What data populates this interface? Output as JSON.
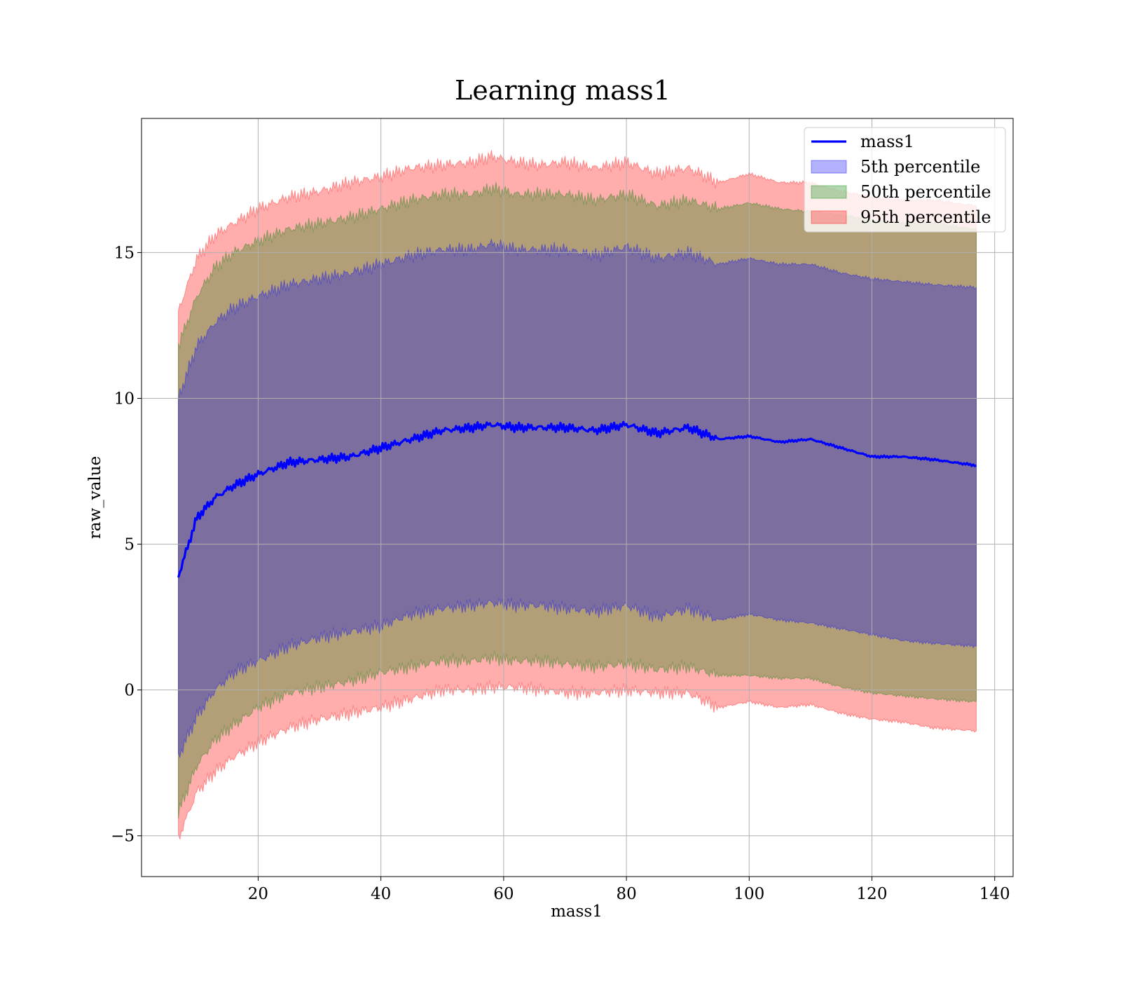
{
  "chart_data": {
    "type": "area",
    "title": "Learning mass1",
    "xlabel": "mass1",
    "ylabel": "raw_value",
    "xlim": [
      1,
      143
    ],
    "ylim": [
      -6.4,
      19.6
    ],
    "xticks": [
      20,
      40,
      60,
      80,
      100,
      120,
      140
    ],
    "yticks": [
      -5,
      0,
      5,
      10,
      15
    ],
    "xtick_labels": [
      "20",
      "40",
      "60",
      "80",
      "100",
      "120",
      "140"
    ],
    "ytick_labels": [
      "−5",
      "0",
      "5",
      "10",
      "15"
    ],
    "grid": true,
    "legend_position": "top-right",
    "x": [
      7,
      10,
      13,
      16,
      20,
      25,
      30,
      35,
      40,
      45,
      50,
      55,
      58,
      62,
      66,
      70,
      75,
      80,
      85,
      90,
      95,
      100,
      105,
      110,
      115,
      120,
      125,
      130,
      137
    ],
    "mean": [
      3.9,
      5.9,
      6.6,
      7.0,
      7.4,
      7.8,
      7.9,
      8.0,
      8.3,
      8.6,
      8.9,
      9.0,
      9.1,
      9.0,
      9.0,
      9.0,
      8.9,
      9.1,
      8.8,
      9.0,
      8.6,
      8.7,
      8.5,
      8.6,
      8.3,
      8.0,
      8.0,
      7.9,
      7.7
    ],
    "bands": [
      {
        "name": "95th percentile",
        "color": "#ff0000",
        "opacity": 0.32,
        "lower": [
          -5.1,
          -3.5,
          -2.8,
          -2.3,
          -1.8,
          -1.3,
          -1.0,
          -0.8,
          -0.6,
          -0.3,
          0.0,
          0.0,
          0.1,
          0.1,
          0.0,
          -0.1,
          -0.1,
          0.0,
          -0.1,
          -0.1,
          -0.6,
          -0.4,
          -0.6,
          -0.5,
          -0.8,
          -1.0,
          -1.1,
          -1.3,
          -1.4
        ],
        "upper": [
          13.0,
          14.8,
          15.6,
          16.0,
          16.5,
          16.9,
          17.1,
          17.4,
          17.6,
          17.9,
          18.0,
          18.1,
          18.3,
          18.1,
          18.0,
          18.1,
          17.9,
          18.1,
          17.7,
          17.9,
          17.4,
          17.7,
          17.4,
          17.4,
          17.1,
          16.9,
          16.8,
          16.8,
          16.6
        ]
      },
      {
        "name": "50th percentile",
        "color": "#008000",
        "opacity": 0.3,
        "lower": [
          -4.2,
          -2.6,
          -1.7,
          -1.2,
          -0.6,
          -0.1,
          0.1,
          0.3,
          0.6,
          0.8,
          1.0,
          1.0,
          1.1,
          1.0,
          1.0,
          0.9,
          0.8,
          0.9,
          0.7,
          0.8,
          0.5,
          0.5,
          0.4,
          0.4,
          0.1,
          -0.1,
          -0.2,
          -0.3,
          -0.4
        ],
        "upper": [
          11.8,
          13.5,
          14.5,
          15.0,
          15.4,
          15.8,
          16.0,
          16.2,
          16.5,
          16.8,
          17.0,
          17.0,
          17.2,
          17.0,
          17.0,
          17.0,
          16.8,
          17.0,
          16.6,
          16.8,
          16.5,
          16.7,
          16.5,
          16.4,
          16.3,
          16.1,
          16.0,
          16.0,
          15.8
        ]
      },
      {
        "name": "5th percentile",
        "color": "#0000ff",
        "opacity": 0.3,
        "lower": [
          -2.3,
          -0.9,
          0.0,
          0.6,
          1.0,
          1.5,
          1.8,
          2.0,
          2.2,
          2.6,
          2.8,
          2.9,
          3.0,
          2.9,
          2.9,
          2.8,
          2.7,
          2.9,
          2.5,
          2.8,
          2.4,
          2.6,
          2.4,
          2.3,
          2.1,
          1.9,
          1.7,
          1.6,
          1.5
        ],
        "upper": [
          10.0,
          11.8,
          12.6,
          13.1,
          13.5,
          13.9,
          14.1,
          14.3,
          14.6,
          14.9,
          15.1,
          15.1,
          15.3,
          15.1,
          15.1,
          15.1,
          14.9,
          15.2,
          14.8,
          15.0,
          14.6,
          14.8,
          14.6,
          14.6,
          14.3,
          14.1,
          14.0,
          13.9,
          13.8
        ]
      }
    ],
    "legend": [
      {
        "label": "mass1",
        "kind": "line",
        "color": "#0000ff"
      },
      {
        "label": "5th percentile",
        "kind": "patch",
        "color": "#0000ff"
      },
      {
        "label": "50th percentile",
        "kind": "patch",
        "color": "#008000"
      },
      {
        "label": "95th percentile",
        "kind": "patch",
        "color": "#ff0000"
      }
    ]
  }
}
